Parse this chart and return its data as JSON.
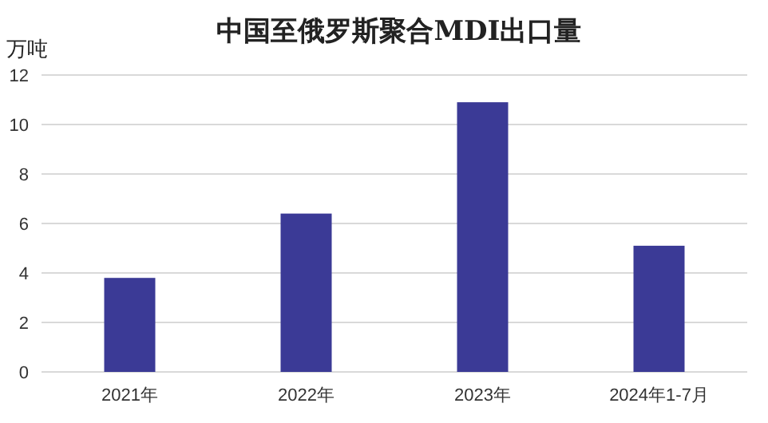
{
  "chart_data": {
    "type": "bar",
    "title": "中国至俄罗斯聚合MDI出口量",
    "ylabel": "万吨",
    "categories": [
      "2021年",
      "2022年",
      "2023年",
      "2024年1-7月"
    ],
    "values": [
      3.8,
      6.4,
      10.9,
      5.1
    ],
    "color": "#3b3a96",
    "ylim": [
      0,
      12
    ],
    "yticks": [
      0,
      2,
      4,
      6,
      8,
      10,
      12
    ],
    "grid": "y"
  }
}
